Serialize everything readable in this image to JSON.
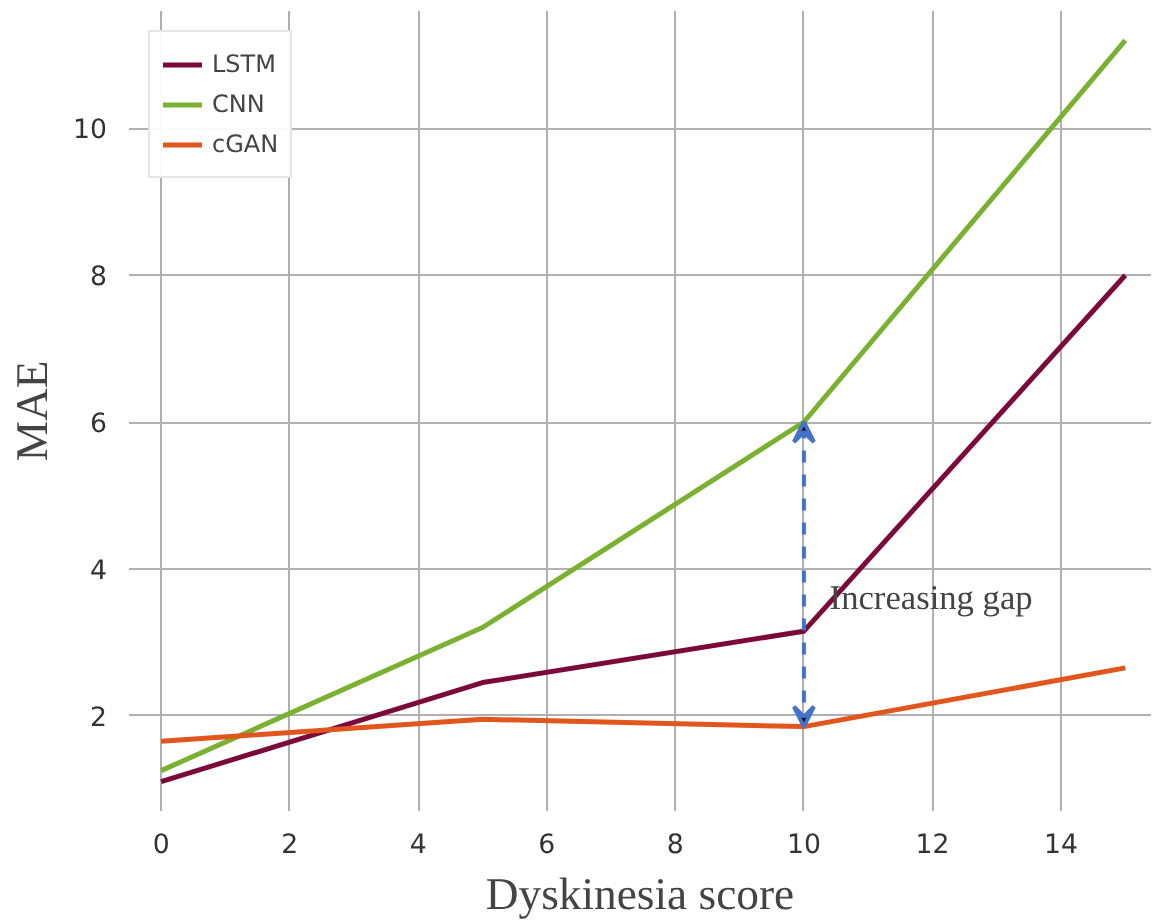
{
  "chart_data": {
    "type": "line",
    "xlabel": "Dyskinesia score",
    "ylabel": "MAE",
    "x": [
      0,
      5,
      10,
      15
    ],
    "series": [
      {
        "name": "LSTM",
        "color": "#7b0a3a",
        "values": [
          1.1,
          2.45,
          3.15,
          8.0
        ]
      },
      {
        "name": "CNN",
        "color": "#7ab131",
        "values": [
          1.25,
          3.2,
          6.0,
          11.2
        ]
      },
      {
        "name": "cGAN",
        "color": "#e0561c",
        "values": [
          1.65,
          1.95,
          1.85,
          2.65
        ]
      }
    ],
    "xlim": [
      -0.5,
      15.4
    ],
    "ylim": [
      0.7,
      11.6
    ],
    "xticks": [
      0,
      2,
      4,
      6,
      8,
      10,
      12,
      14
    ],
    "yticks": [
      2,
      4,
      6,
      8,
      10
    ],
    "annotations": [
      {
        "text": "Increasing gap",
        "x": 10.4,
        "y": 3.6
      }
    ],
    "grid": true,
    "legend": "top left",
    "marker": "none",
    "line_style": "solid"
  }
}
